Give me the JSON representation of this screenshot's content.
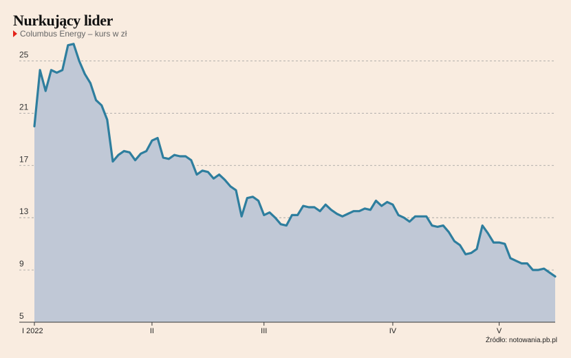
{
  "header": {
    "title": "Nurkujący lider",
    "subtitle": "Columbus Energy – kurs w zł"
  },
  "footer": {
    "source": "Źródło: notowania.pb.pl"
  },
  "colors": {
    "background": "#f9ece0",
    "line": "#2e7e9e",
    "area": "#c0c8d6",
    "marker": "#e32219",
    "grid": "#9a9a9a"
  },
  "chart_data": {
    "type": "area",
    "title": "Nurkujący lider",
    "subtitle": "Columbus Energy – kurs w zł",
    "xlabel": "",
    "ylabel": "",
    "ylim": [
      5,
      26.5
    ],
    "grid": "horizontal dashed",
    "legend": "none",
    "yticks": [
      5,
      9,
      13,
      17,
      21,
      25
    ],
    "xticks": [
      {
        "label": "I 2022",
        "x": 0
      },
      {
        "label": "II",
        "x": 21
      },
      {
        "label": "III",
        "x": 41
      },
      {
        "label": "IV",
        "x": 64
      },
      {
        "label": "V",
        "x": 83
      }
    ],
    "series": [
      {
        "values": [
          20.0,
          24.3,
          22.7,
          24.3,
          24.1,
          24.3,
          26.2,
          26.3,
          25.0,
          24.0,
          23.3,
          22.0,
          21.6,
          20.5,
          17.3,
          17.8,
          18.1,
          18.0,
          17.4,
          17.9,
          18.1,
          18.9,
          19.1,
          17.6,
          17.5,
          17.8,
          17.7,
          17.7,
          17.4,
          16.3,
          16.6,
          16.5,
          16.0,
          16.3,
          15.9,
          15.4,
          15.1,
          13.1,
          14.5,
          14.6,
          14.3,
          13.2,
          13.4,
          13.0,
          12.5,
          12.4,
          13.2,
          13.2,
          13.9,
          13.8,
          13.8,
          13.5,
          14.0,
          13.6,
          13.3,
          13.1,
          13.3,
          13.5,
          13.5,
          13.7,
          13.6,
          14.3,
          13.9,
          14.2,
          14.0,
          13.2,
          13.0,
          12.7,
          13.1,
          13.1,
          13.1,
          12.4,
          12.3,
          12.4,
          11.9,
          11.2,
          10.9,
          10.2,
          10.3,
          10.6,
          12.4,
          11.8,
          11.1,
          11.1,
          11.0,
          9.9,
          9.7,
          9.5,
          9.5,
          9.0,
          9.0,
          9.1,
          8.8,
          8.5
        ]
      }
    ]
  }
}
